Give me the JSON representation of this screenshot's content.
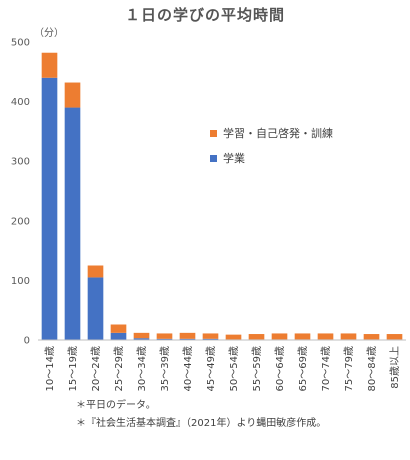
{
  "chart_data": {
    "type": "bar",
    "stacked": true,
    "title": "１日の学びの平均時間",
    "unit_label": "（分）",
    "ylim": [
      0,
      500
    ],
    "yticks": [
      0,
      100,
      200,
      300,
      400,
      500
    ],
    "grid": false,
    "legend_position": "right",
    "categories": [
      "10～14歳",
      "15～19歳",
      "20～24歳",
      "25～29歳",
      "30～34歳",
      "35～39歳",
      "40～44歳",
      "45～49歳",
      "50～54歳",
      "55～59歳",
      "60～64歳",
      "65～69歳",
      "70～74歳",
      "75～79歳",
      "80～84歳",
      "85歳以上"
    ],
    "series": [
      {
        "name": "学業",
        "color": "#4472C4",
        "values": [
          440,
          390,
          105,
          12,
          3,
          2,
          2,
          2,
          1,
          1,
          1,
          1,
          1,
          1,
          1,
          1
        ]
      },
      {
        "name": "学習・自己啓発・訓練",
        "color": "#ED7D31",
        "values": [
          42,
          42,
          20,
          14,
          9,
          9,
          10,
          9,
          8,
          9,
          10,
          10,
          10,
          10,
          9,
          9
        ]
      }
    ]
  },
  "legend_order": [
    1,
    0
  ],
  "notes": [
    "＊平日のデータ。",
    "＊『社会生活基本調査』（2021年）より蝿田敏彦作成。"
  ]
}
